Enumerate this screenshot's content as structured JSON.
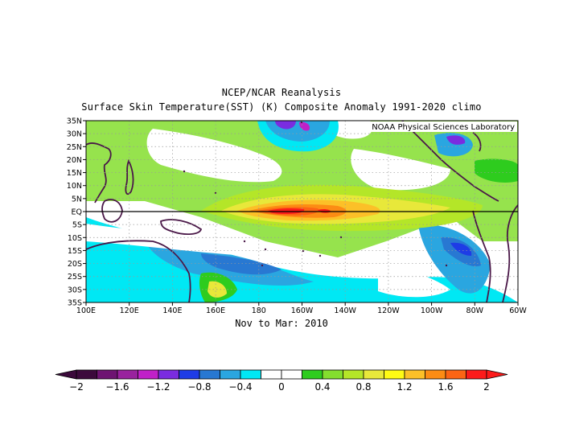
{
  "title_line1": "NCEP/NCAR Reanalysis",
  "title_line2": "Surface Skin Temperature(SST) (K) Composite Anomaly 1991-2020 climo",
  "credit": "NOAA Physical Sciences Laboratory",
  "period_label": "Nov to Mar: 2010",
  "colors": {
    "land_outline": "#4a1848",
    "equator_line": "#000000",
    "grid": "#999999"
  },
  "chart_data": {
    "type": "heatmap",
    "variable": "Surface Skin Temperature (SST) anomaly",
    "units": "K",
    "lon_range": [
      100,
      300
    ],
    "lat_range": [
      -35,
      35
    ],
    "x_ticks": [
      {
        "lon": 100,
        "label": "100E"
      },
      {
        "lon": 120,
        "label": "120E"
      },
      {
        "lon": 140,
        "label": "140E"
      },
      {
        "lon": 160,
        "label": "160E"
      },
      {
        "lon": 180,
        "label": "180"
      },
      {
        "lon": 200,
        "label": "160W"
      },
      {
        "lon": 220,
        "label": "140W"
      },
      {
        "lon": 240,
        "label": "120W"
      },
      {
        "lon": 260,
        "label": "100W"
      },
      {
        "lon": 280,
        "label": "80W"
      },
      {
        "lon": 300,
        "label": "60W"
      }
    ],
    "y_ticks": [
      {
        "lat": 35,
        "label": "35N"
      },
      {
        "lat": 30,
        "label": "30N"
      },
      {
        "lat": 25,
        "label": "25N"
      },
      {
        "lat": 20,
        "label": "20N"
      },
      {
        "lat": 15,
        "label": "15N"
      },
      {
        "lat": 10,
        "label": "10N"
      },
      {
        "lat": 5,
        "label": "5N"
      },
      {
        "lat": 0,
        "label": "EQ"
      },
      {
        "lat": -5,
        "label": "5S"
      },
      {
        "lat": -10,
        "label": "10S"
      },
      {
        "lat": -15,
        "label": "15S"
      },
      {
        "lat": -20,
        "label": "20S"
      },
      {
        "lat": -25,
        "label": "25S"
      },
      {
        "lat": -30,
        "label": "30S"
      },
      {
        "lat": -35,
        "label": "35S"
      }
    ],
    "colorbar": {
      "colors": [
        "#3c0a3c",
        "#6e1472",
        "#99229e",
        "#c020c8",
        "#7a2ce0",
        "#1e3ce6",
        "#2878d2",
        "#2aa6e0",
        "#00e8f4",
        "#ffffff",
        "#ffffff",
        "#2ecc1e",
        "#84de2e",
        "#b4e628",
        "#e8e83a",
        "#fffa14",
        "#fcc028",
        "#fc8c14",
        "#fc6414",
        "#fc1a1a"
      ],
      "labels": [
        "-2",
        "-1.6",
        "-1.2",
        "-0.8",
        "-0.4",
        "0",
        "0.4",
        "0.8",
        "1.2",
        "1.6",
        "2"
      ],
      "label_values": [
        -2,
        -1.6,
        -1.2,
        -0.8,
        -0.4,
        0,
        0.4,
        0.8,
        1.2,
        1.6,
        2
      ],
      "range": [
        -2,
        2
      ],
      "step": 0.2
    },
    "anomaly_features": [
      {
        "name": "central-pacific-warm-anomaly",
        "lon": [
          160,
          220
        ],
        "lat": [
          -2,
          2
        ],
        "value": 2.0
      },
      {
        "name": "equatorial-warm-tongue",
        "lon": [
          150,
          270
        ],
        "lat": [
          -6,
          8
        ],
        "value": 0.8
      },
      {
        "name": "north-pacific-cold-anomaly",
        "lon": [
          175,
          210
        ],
        "lat": [
          25,
          35
        ],
        "value": -1.4
      },
      {
        "name": "southwest-pacific-cold-band",
        "lon": [
          150,
          200
        ],
        "lat": [
          -28,
          -12
        ],
        "value": -0.9
      },
      {
        "name": "southeast-pacific-cold-anomaly",
        "lon": [
          255,
          285
        ],
        "lat": [
          -25,
          -8
        ],
        "value": -1.0
      },
      {
        "name": "gulf-of-mexico-cold-anomaly",
        "lon": [
          265,
          275
        ],
        "lat": [
          22,
          32
        ],
        "value": -1.2
      },
      {
        "name": "caribbean-warm-anomaly",
        "lon": [
          285,
          300
        ],
        "lat": [
          12,
          22
        ],
        "value": 0.6
      }
    ]
  }
}
